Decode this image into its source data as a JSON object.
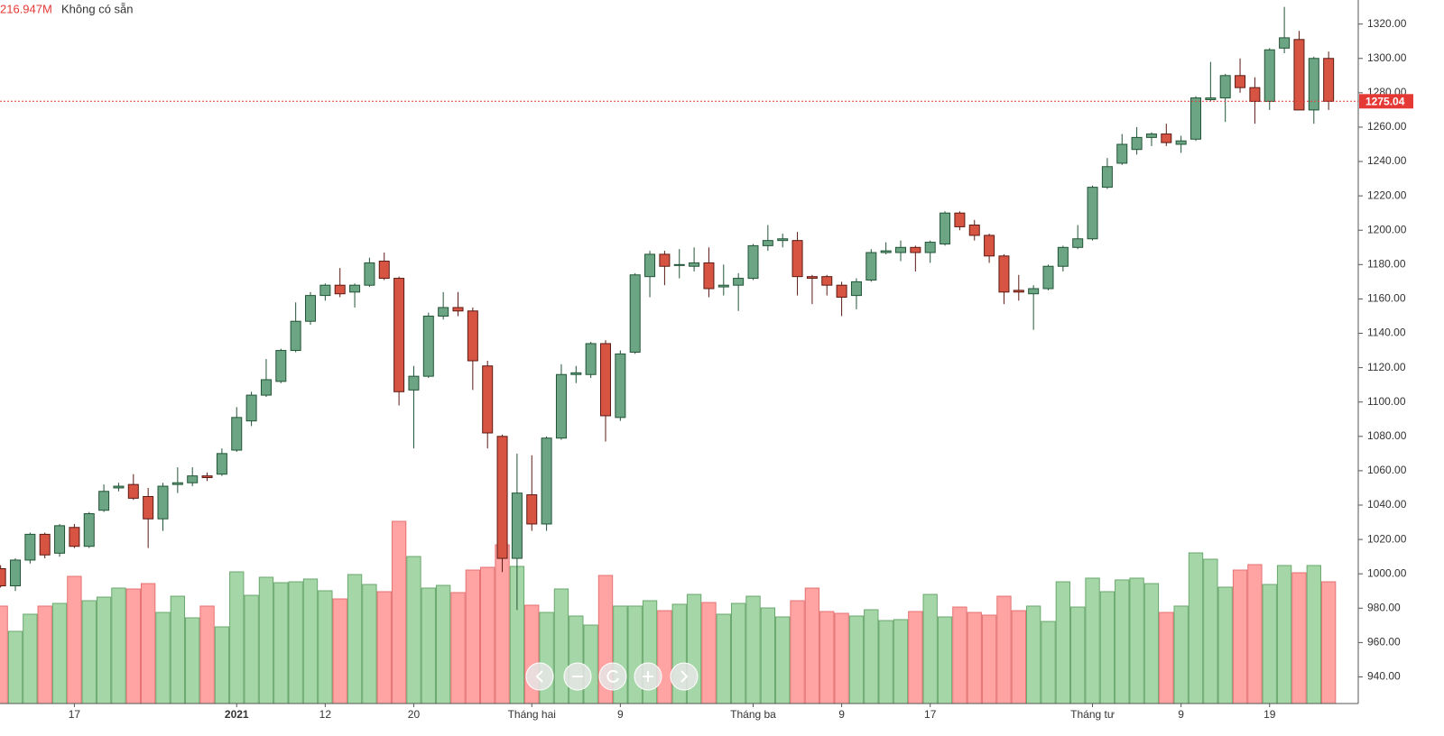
{
  "chart_data": {
    "type": "candlestick",
    "last_volume_label": "216.947M",
    "status": "Không có sẵn",
    "categories": [
      null,
      null,
      null,
      null,
      null,
      "17",
      null,
      null,
      null,
      null,
      null,
      null,
      null,
      null,
      null,
      null,
      "2021",
      null,
      null,
      null,
      null,
      null,
      "12",
      null,
      null,
      null,
      null,
      null,
      "20",
      null,
      null,
      null,
      null,
      null,
      null,
      null,
      "Tháng hai",
      null,
      null,
      null,
      null,
      null,
      "9",
      null,
      null,
      null,
      null,
      null,
      null,
      null,
      null,
      "Tháng ba",
      null,
      null,
      null,
      null,
      null,
      "9",
      null,
      null,
      null,
      null,
      null,
      "17",
      null,
      null,
      null,
      null,
      null,
      null,
      null,
      null,
      null,
      null,
      "Tháng tư",
      null,
      null,
      null,
      null,
      null,
      "9",
      null,
      null,
      null,
      null,
      null,
      "19",
      null,
      null,
      null,
      null
    ],
    "open": [
      1003,
      993,
      1008,
      1023,
      1012,
      1027,
      1016,
      1037,
      1050,
      1052,
      1045,
      1032,
      1052,
      1053,
      1057,
      1058,
      1072,
      1089,
      1104,
      1112,
      1130,
      1147,
      1162,
      1168,
      1164,
      1168,
      1182,
      1172,
      1107,
      1115,
      1150,
      1155,
      1153,
      1121,
      1080,
      1009,
      1046,
      1029,
      1079,
      1116,
      1116,
      1134,
      1091,
      1129,
      1173,
      1186,
      1180,
      1179,
      1181,
      1167,
      1168,
      1172,
      1191,
      1194,
      1194,
      1173,
      1173,
      1168,
      1162,
      1171,
      1187,
      1187,
      1190,
      1187,
      1192,
      1210,
      1203,
      1197,
      1185,
      1165,
      1163,
      1166,
      1179,
      1190,
      1195,
      1225,
      1239,
      1247,
      1254,
      1256,
      1250,
      1253,
      1276,
      1277,
      1290,
      1283,
      1275,
      1306,
      1311,
      1270,
      1300
    ],
    "high": [
      1005,
      1009,
      1024,
      1024,
      1029,
      1029,
      1036,
      1052,
      1053,
      1058,
      1050,
      1053,
      1062,
      1062,
      1059,
      1073,
      1097,
      1106,
      1125,
      1131,
      1158,
      1164,
      1169,
      1178,
      1169,
      1184,
      1187,
      1173,
      1121,
      1152,
      1164,
      1164,
      1155,
      1124,
      1081,
      1070,
      1069,
      1080,
      1122,
      1121,
      1135,
      1136,
      1130,
      1175,
      1188,
      1188,
      1189,
      1190,
      1190,
      1180,
      1175,
      1192,
      1203,
      1198,
      1199,
      1174,
      1174,
      1170,
      1172,
      1189,
      1193,
      1194,
      1191,
      1194,
      1211,
      1211,
      1206,
      1198,
      1186,
      1174,
      1168,
      1180,
      1191,
      1203,
      1226,
      1242,
      1256,
      1260,
      1257,
      1262,
      1255,
      1278,
      1298,
      1291,
      1300,
      1289,
      1306,
      1330,
      1316,
      1301,
      1304
    ],
    "low": [
      992,
      990,
      1006,
      1009,
      1010,
      1015,
      1015,
      1036,
      1048,
      1043,
      1015,
      1025,
      1047,
      1051,
      1054,
      1057,
      1071,
      1086,
      1103,
      1111,
      1129,
      1145,
      1159,
      1161,
      1155,
      1167,
      1171,
      1098,
      1073,
      1114,
      1148,
      1150,
      1107,
      1073,
      1001,
      979,
      1025,
      1025,
      1078,
      1111,
      1114,
      1077,
      1089,
      1128,
      1161,
      1168,
      1172,
      1176,
      1161,
      1162,
      1153,
      1171,
      1188,
      1190,
      1162,
      1157,
      1162,
      1150,
      1154,
      1170,
      1186,
      1182,
      1176,
      1181,
      1191,
      1200,
      1194,
      1181,
      1157,
      1159,
      1142,
      1165,
      1176,
      1189,
      1194,
      1224,
      1238,
      1244,
      1249,
      1249,
      1245,
      1252,
      1275,
      1263,
      1280,
      1262,
      1270,
      1303,
      1270,
      1262,
      1270
    ],
    "close": [
      993,
      1008,
      1023,
      1011,
      1028,
      1016,
      1035,
      1048,
      1051,
      1044,
      1032,
      1051,
      1053,
      1057,
      1056,
      1070,
      1091,
      1104,
      1113,
      1130,
      1147,
      1162,
      1168,
      1163,
      1168,
      1181,
      1172,
      1106,
      1115,
      1150,
      1155,
      1153,
      1124,
      1082,
      1009,
      1047,
      1029,
      1079,
      1116,
      1117,
      1134,
      1092,
      1128,
      1174,
      1186,
      1179,
      1180,
      1181,
      1166,
      1168,
      1172,
      1191,
      1194,
      1195,
      1173,
      1172,
      1168,
      1161,
      1170,
      1187,
      1188,
      1190,
      1187,
      1193,
      1210,
      1202,
      1197,
      1185,
      1164,
      1164,
      1166,
      1179,
      1190,
      1195,
      1225,
      1237,
      1250,
      1254,
      1256,
      1251,
      1252,
      1277,
      1277,
      1290,
      1283,
      1275,
      1305,
      1312,
      1270,
      1300,
      1275.04
    ],
    "volume": [
      173.6,
      128.6,
      159.1,
      173.6,
      178.4,
      226.6,
      183.2,
      189.6,
      205.7,
      204.1,
      213.7,
      162.3,
      191.2,
      152.7,
      173.6,
      136.6,
      234.6,
      192.8,
      225.0,
      215.3,
      216.9,
      221.8,
      200.9,
      186.4,
      229.8,
      212.1,
      199.3,
      324.6,
      261.9,
      205.7,
      210.5,
      197.7,
      237.8,
      242.7,
      282.8,
      244.3,
      175.2,
      162.3,
      204.1,
      155.9,
      139.8,
      228.2,
      173.6,
      173.6,
      183.2,
      165.5,
      176.8,
      194.4,
      180.0,
      159.1,
      178.4,
      191.2,
      170.3,
      154.3,
      183.2,
      205.7,
      163.9,
      160.7,
      155.9,
      167.1,
      147.8,
      149.5,
      163.9,
      194.4,
      154.3,
      171.9,
      162.3,
      157.5,
      191.2,
      165.5,
      173.6,
      146.2,
      216.9,
      171.9,
      223.4,
      199.3,
      220.2,
      223.4,
      213.7,
      162.3,
      173.6,
      268.4,
      257.1,
      207.3,
      237.8,
      247.5,
      212.1,
      245.9,
      233.0,
      245.9,
      216.947
    ],
    "ylim": [
      924.5,
      1334
    ],
    "yticks": [
      {
        "value": 940,
        "label": "940.00"
      },
      {
        "value": 960,
        "label": "960.00"
      },
      {
        "value": 980,
        "label": "980.00"
      },
      {
        "value": 1000,
        "label": "1000.00"
      },
      {
        "value": 1020,
        "label": "1020.00"
      },
      {
        "value": 1040,
        "label": "1040.00"
      },
      {
        "value": 1060,
        "label": "1060.00"
      },
      {
        "value": 1080,
        "label": "1080.00"
      },
      {
        "value": 1100,
        "label": "1100.00"
      },
      {
        "value": 1120,
        "label": "1120.00"
      },
      {
        "value": 1140,
        "label": "1140.00"
      },
      {
        "value": 1160,
        "label": "1160.00"
      },
      {
        "value": 1180,
        "label": "1180.00"
      },
      {
        "value": 1200,
        "label": "1200.00"
      },
      {
        "value": 1220,
        "label": "1220.00"
      },
      {
        "value": 1240,
        "label": "1240.00"
      },
      {
        "value": 1260,
        "label": "1260.00"
      },
      {
        "value": 1280,
        "label": "1280.00"
      },
      {
        "value": 1300,
        "label": "1300.00"
      },
      {
        "value": 1320,
        "label": "1320.00"
      }
    ],
    "up_color": "#6ba583",
    "up_border": "#225437",
    "down_color": "#d75442",
    "down_border": "#5b1a13",
    "volume_up_color": "#a5d6a7",
    "volume_up_border": "#6aa86e",
    "volume_down_color": "#ffa3a3",
    "volume_down_border": "#e57373",
    "last_price_color": "#e53935"
  }
}
